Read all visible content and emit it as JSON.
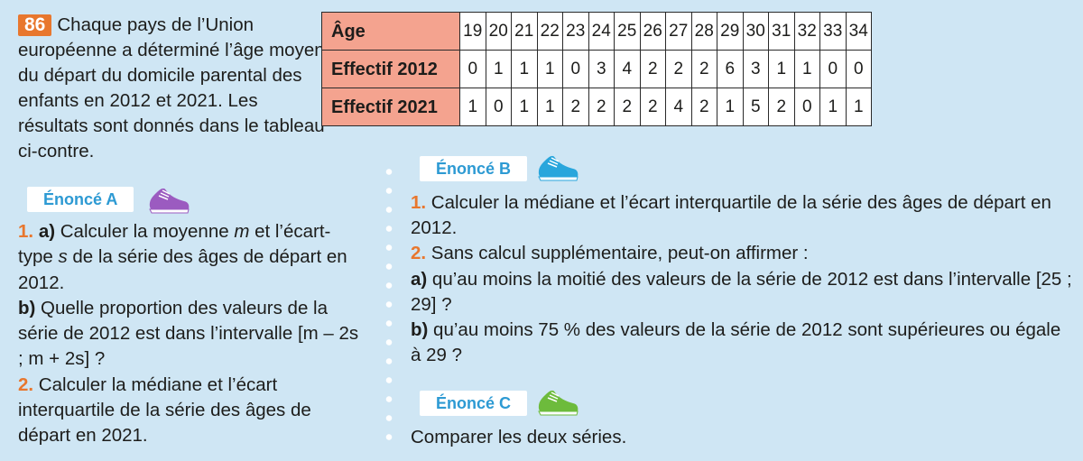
{
  "exercise": {
    "number": "86",
    "intro": "Chaque pays de l’Union européenne a déterminé l’âge moyen du départ du domicile parental des enfants en 2012 et 2021. Les résultats sont donnés dans le tableau ci-contre."
  },
  "table": {
    "row_labels": [
      "Âge",
      "Effectif 2012",
      "Effectif 2021"
    ],
    "ages": [
      "19",
      "20",
      "21",
      "22",
      "23",
      "24",
      "25",
      "26",
      "27",
      "28",
      "29",
      "30",
      "31",
      "32",
      "33",
      "34"
    ],
    "effectif_2012": [
      "0",
      "1",
      "1",
      "1",
      "0",
      "3",
      "4",
      "2",
      "2",
      "2",
      "6",
      "3",
      "1",
      "1",
      "0",
      "0"
    ],
    "effectif_2021": [
      "1",
      "0",
      "1",
      "1",
      "2",
      "2",
      "2",
      "2",
      "4",
      "2",
      "1",
      "5",
      "2",
      "0",
      "1",
      "1"
    ]
  },
  "enonce_a": {
    "label": "Énoncé A",
    "q1_num": "1.",
    "q1a_letter": "a)",
    "q1a_text_1": " Calculer la moyenne ",
    "q1a_m": "m",
    "q1a_text_2": " et l’écart-type ",
    "q1a_s": "s",
    "q1a_text_3": " de la série des âges de départ en 2012.",
    "q1b_letter": "b)",
    "q1b_text": " Quelle proportion des valeurs de la série de 2012 est dans l’intervalle ",
    "q1b_interval": "[m – 2s ; m + 2s] ?",
    "q2_num": "2.",
    "q2_text": " Calculer la médiane et l’écart interquartile de la série des âges de départ en 2021."
  },
  "enonce_b": {
    "label": "Énoncé B",
    "q1_num": "1.",
    "q1_text": " Calculer la médiane et l’écart interquartile de la série des âges de départ en 2012.",
    "q2_num": "2.",
    "q2_text": " Sans calcul supplémentaire, peut-on affirmer :",
    "q2a_letter": "a)",
    "q2a_text": " qu’au moins la moitié des valeurs de la série de 2012 est dans l’intervalle [25 ; 29] ?",
    "q2b_letter": "b)",
    "q2b_text": " qu’au moins 75 % des valeurs de la série de 2012 sont supérieures ou égale à 29 ?"
  },
  "enonce_c": {
    "label": "Énoncé C",
    "text": "Comparer les deux séries."
  },
  "icons": {
    "shoe_a": "sneaker-icon-purple",
    "shoe_b": "sneaker-icon-blue",
    "shoe_c": "sneaker-icon-green"
  },
  "colors": {
    "background": "#cfe6f4",
    "accent_orange": "#e8772e",
    "label_blue": "#2d9ad3",
    "table_header": "#f4a38f",
    "shoe_purple": "#9b5bc0",
    "shoe_blue": "#29a6dc",
    "shoe_green": "#6dbb3c"
  }
}
